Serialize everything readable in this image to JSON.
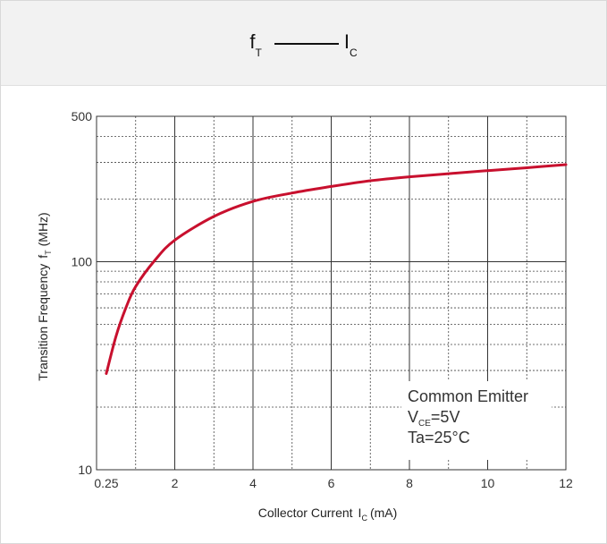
{
  "header": {
    "title_f": "f",
    "title_f_sub": "T",
    "title_i": "I",
    "title_i_sub": "C"
  },
  "chart_data": {
    "type": "line",
    "scale_y": "log",
    "grid": true,
    "xlim": [
      0,
      12
    ],
    "ylim": [
      10,
      500
    ],
    "x_ticks": [
      {
        "value": 0.25,
        "label": "0.25"
      },
      {
        "value": 2,
        "label": "2"
      },
      {
        "value": 4,
        "label": "4"
      },
      {
        "value": 6,
        "label": "6"
      },
      {
        "value": 8,
        "label": "8"
      },
      {
        "value": 10,
        "label": "10"
      },
      {
        "value": 12,
        "label": "12"
      }
    ],
    "y_ticks": [
      {
        "value": 500,
        "label": "500"
      },
      {
        "value": 100,
        "label": "100"
      },
      {
        "value": 10,
        "label": "10"
      }
    ],
    "y_major_grid": [
      100
    ],
    "y_minor_grid": [
      20,
      30,
      40,
      50,
      60,
      70,
      80,
      90,
      200,
      300,
      400
    ],
    "x_major_grid": [
      2,
      4,
      6,
      8,
      10
    ],
    "x_minor_grid": [
      1,
      3,
      5,
      7,
      9,
      11
    ],
    "xlabel": "Collector Current",
    "xlabel_sym": "I",
    "xlabel_sub": "C",
    "xlabel_unit": "(mA)",
    "ylabel": "Transition Frequency",
    "ylabel_sym": "f",
    "ylabel_sub": "T",
    "ylabel_unit": "(MHz)",
    "annotation": {
      "line1": "Common Emitter",
      "line2_sym": "V",
      "line2_sub": "CE",
      "line2_val": "=5V",
      "line3": "Ta=25°C"
    },
    "series": [
      {
        "color": "#c8102e",
        "x": [
          0.25,
          0.5,
          0.75,
          1.0,
          1.5,
          2.0,
          3.0,
          4.0,
          5.0,
          6.0,
          7.0,
          8.0,
          9.0,
          10.0,
          11.0,
          12.0
        ],
        "y": [
          29,
          44,
          60,
          76,
          102,
          127,
          165,
          195,
          214,
          230,
          245,
          256,
          265,
          274,
          283,
          293
        ]
      }
    ]
  }
}
